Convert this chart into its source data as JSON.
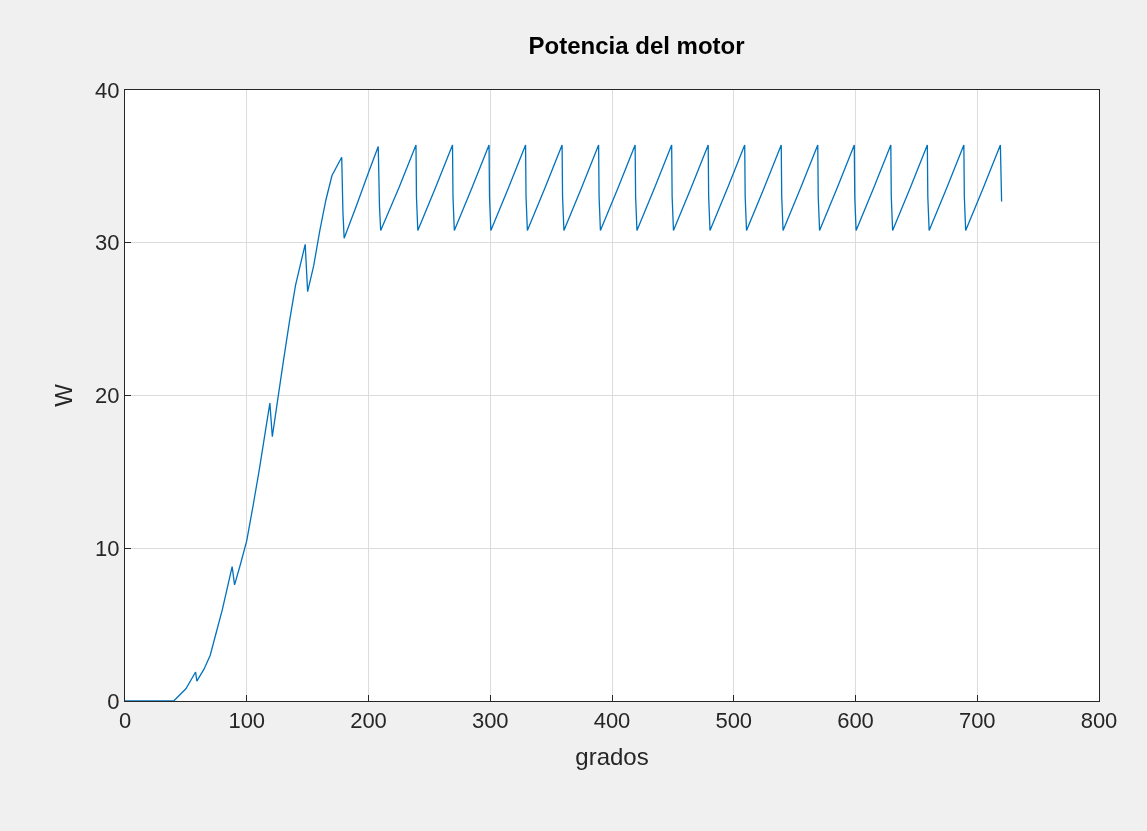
{
  "chart_data": {
    "type": "line",
    "title": "Potencia del motor",
    "xlabel": "grados",
    "ylabel": "W",
    "x": [
      0,
      40,
      50,
      58,
      59,
      65,
      70,
      75,
      80,
      88,
      90,
      95,
      100,
      105,
      110,
      115,
      119,
      121,
      125,
      130,
      135,
      140,
      148,
      150,
      155,
      160,
      165,
      170,
      178,
      179,
      180,
      190,
      200,
      208,
      209,
      210,
      225,
      239,
      239.4,
      240.5,
      255,
      269,
      269.4,
      270.5,
      285,
      299,
      299.4,
      300.5,
      315,
      329,
      329.4,
      330.5,
      345,
      359,
      359.4,
      360.5,
      375,
      389,
      389.4,
      390.5,
      405,
      419,
      419.4,
      420.5,
      435,
      449,
      449.4,
      450.5,
      465,
      479,
      479.4,
      480.5,
      495,
      509,
      509.4,
      510.5,
      525,
      539,
      539.4,
      540.5,
      555,
      569,
      569.4,
      570.5,
      585,
      599,
      599.4,
      600.5,
      615,
      629,
      629.4,
      630.5,
      645,
      659,
      659.4,
      660.5,
      675,
      689,
      689.4,
      690.5,
      705,
      719,
      720
    ],
    "series": [
      {
        "color": "#0072bd",
        "values": [
          0,
          0,
          0.8,
          1.9,
          1.3,
          2.1,
          3,
          4.5,
          6,
          8.8,
          7.6,
          9,
          10.5,
          12.7,
          15,
          17.5,
          19.5,
          17.3,
          19.5,
          22.2,
          24.8,
          27.2,
          29.9,
          26.8,
          28.5,
          30.8,
          32.8,
          34.4,
          35.6,
          32,
          30.3,
          32.4,
          34.6,
          36.3,
          32.4,
          30.8,
          33.6,
          36.4,
          33,
          30.8,
          33.6,
          36.4,
          33,
          30.8,
          33.6,
          36.4,
          33,
          30.8,
          33.6,
          36.4,
          33,
          30.8,
          33.6,
          36.4,
          33,
          30.8,
          33.6,
          36.4,
          33,
          30.8,
          33.6,
          36.4,
          33,
          30.8,
          33.6,
          36.4,
          33,
          30.8,
          33.6,
          36.4,
          33,
          30.8,
          33.6,
          36.4,
          33,
          30.8,
          33.6,
          36.4,
          33,
          30.8,
          33.6,
          36.4,
          33,
          30.8,
          33.6,
          36.4,
          33,
          30.8,
          33.6,
          36.4,
          33,
          30.8,
          33.6,
          36.4,
          33,
          30.8,
          33.6,
          36.4,
          33,
          30.8,
          33.6,
          36.4,
          32.7
        ]
      }
    ],
    "xlim": [
      0,
      800
    ],
    "xticks": [
      0,
      100,
      200,
      300,
      400,
      500,
      600,
      700,
      800
    ],
    "ylim": [
      0,
      40
    ],
    "yticks": [
      0,
      10,
      20,
      30,
      40
    ],
    "grid": true,
    "marker": "none",
    "line_style": "solid"
  }
}
